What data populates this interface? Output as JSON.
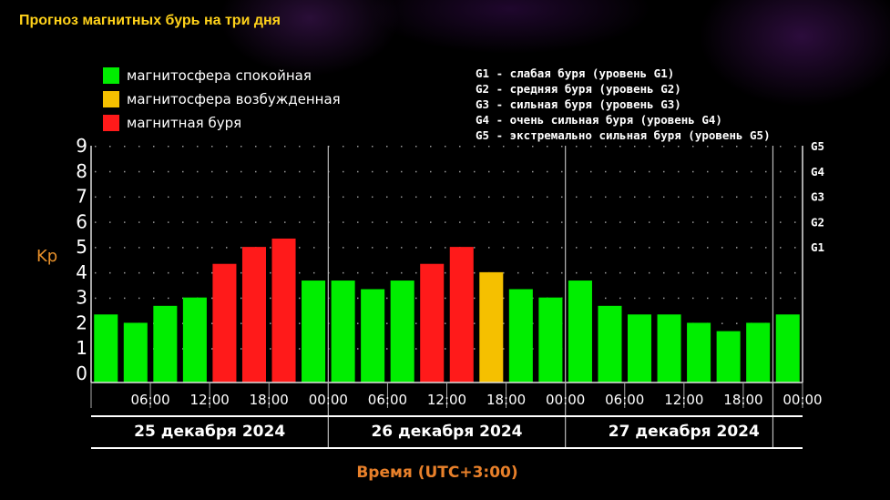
{
  "title": "Прогноз магнитных бурь на три дня",
  "legend": {
    "items": [
      {
        "label": "магнитосфера спокойная",
        "color": "#00ee00"
      },
      {
        "label": "магнитосфера возбужденная",
        "color": "#f5c000"
      },
      {
        "label": "магнитная буря",
        "color": "#ff1a1a"
      }
    ]
  },
  "g_legend": [
    "G1 - слабая буря (уровень G1)",
    "G2 - средняя буря (уровень G2)",
    "G3 - сильная буря (уровень G3)",
    "G4 - очень сильная буря (уровень G4)",
    "G5 - экстремально сильная буря (уровень G5)"
  ],
  "chart_data": {
    "type": "bar",
    "ylabel": "Kp",
    "xlabel": "Время (UTC+3:00)",
    "ylim": [
      0,
      9
    ],
    "y_ticks": [
      "0",
      "1",
      "2",
      "3",
      "4",
      "5",
      "6",
      "7",
      "8",
      "9"
    ],
    "g_levels": [
      {
        "label": "G1",
        "kp": 5
      },
      {
        "label": "G2",
        "kp": 6
      },
      {
        "label": "G3",
        "kp": 7
      },
      {
        "label": "G4",
        "kp": 8
      },
      {
        "label": "G5",
        "kp": 9
      }
    ],
    "x_tick_labels": [
      "06:00",
      "12:00",
      "18:00",
      "00:00",
      "06:00",
      "12:00",
      "18:00",
      "00:00",
      "06:00",
      "12:00",
      "18:00",
      "00:00"
    ],
    "days": [
      "25 декабря 2024",
      "26 декабря 2024",
      "27 декабря 2024"
    ],
    "values": [
      2.33,
      2.0,
      2.67,
      3.0,
      4.33,
      5.0,
      5.33,
      3.67,
      3.67,
      3.33,
      3.67,
      4.33,
      5.0,
      4.0,
      3.33,
      3.0,
      3.67,
      2.67,
      2.33,
      2.33,
      2.0,
      1.67,
      2.0,
      2.33
    ],
    "levels": [
      "quiet",
      "quiet",
      "quiet",
      "quiet",
      "storm",
      "storm",
      "storm",
      "quiet",
      "quiet",
      "quiet",
      "quiet",
      "storm",
      "storm",
      "active",
      "quiet",
      "quiet",
      "quiet",
      "quiet",
      "quiet",
      "quiet",
      "quiet",
      "quiet",
      "quiet",
      "quiet"
    ],
    "level_colors": {
      "quiet": "#00ee00",
      "active": "#f5c000",
      "storm": "#ff1a1a"
    },
    "grid": true
  }
}
